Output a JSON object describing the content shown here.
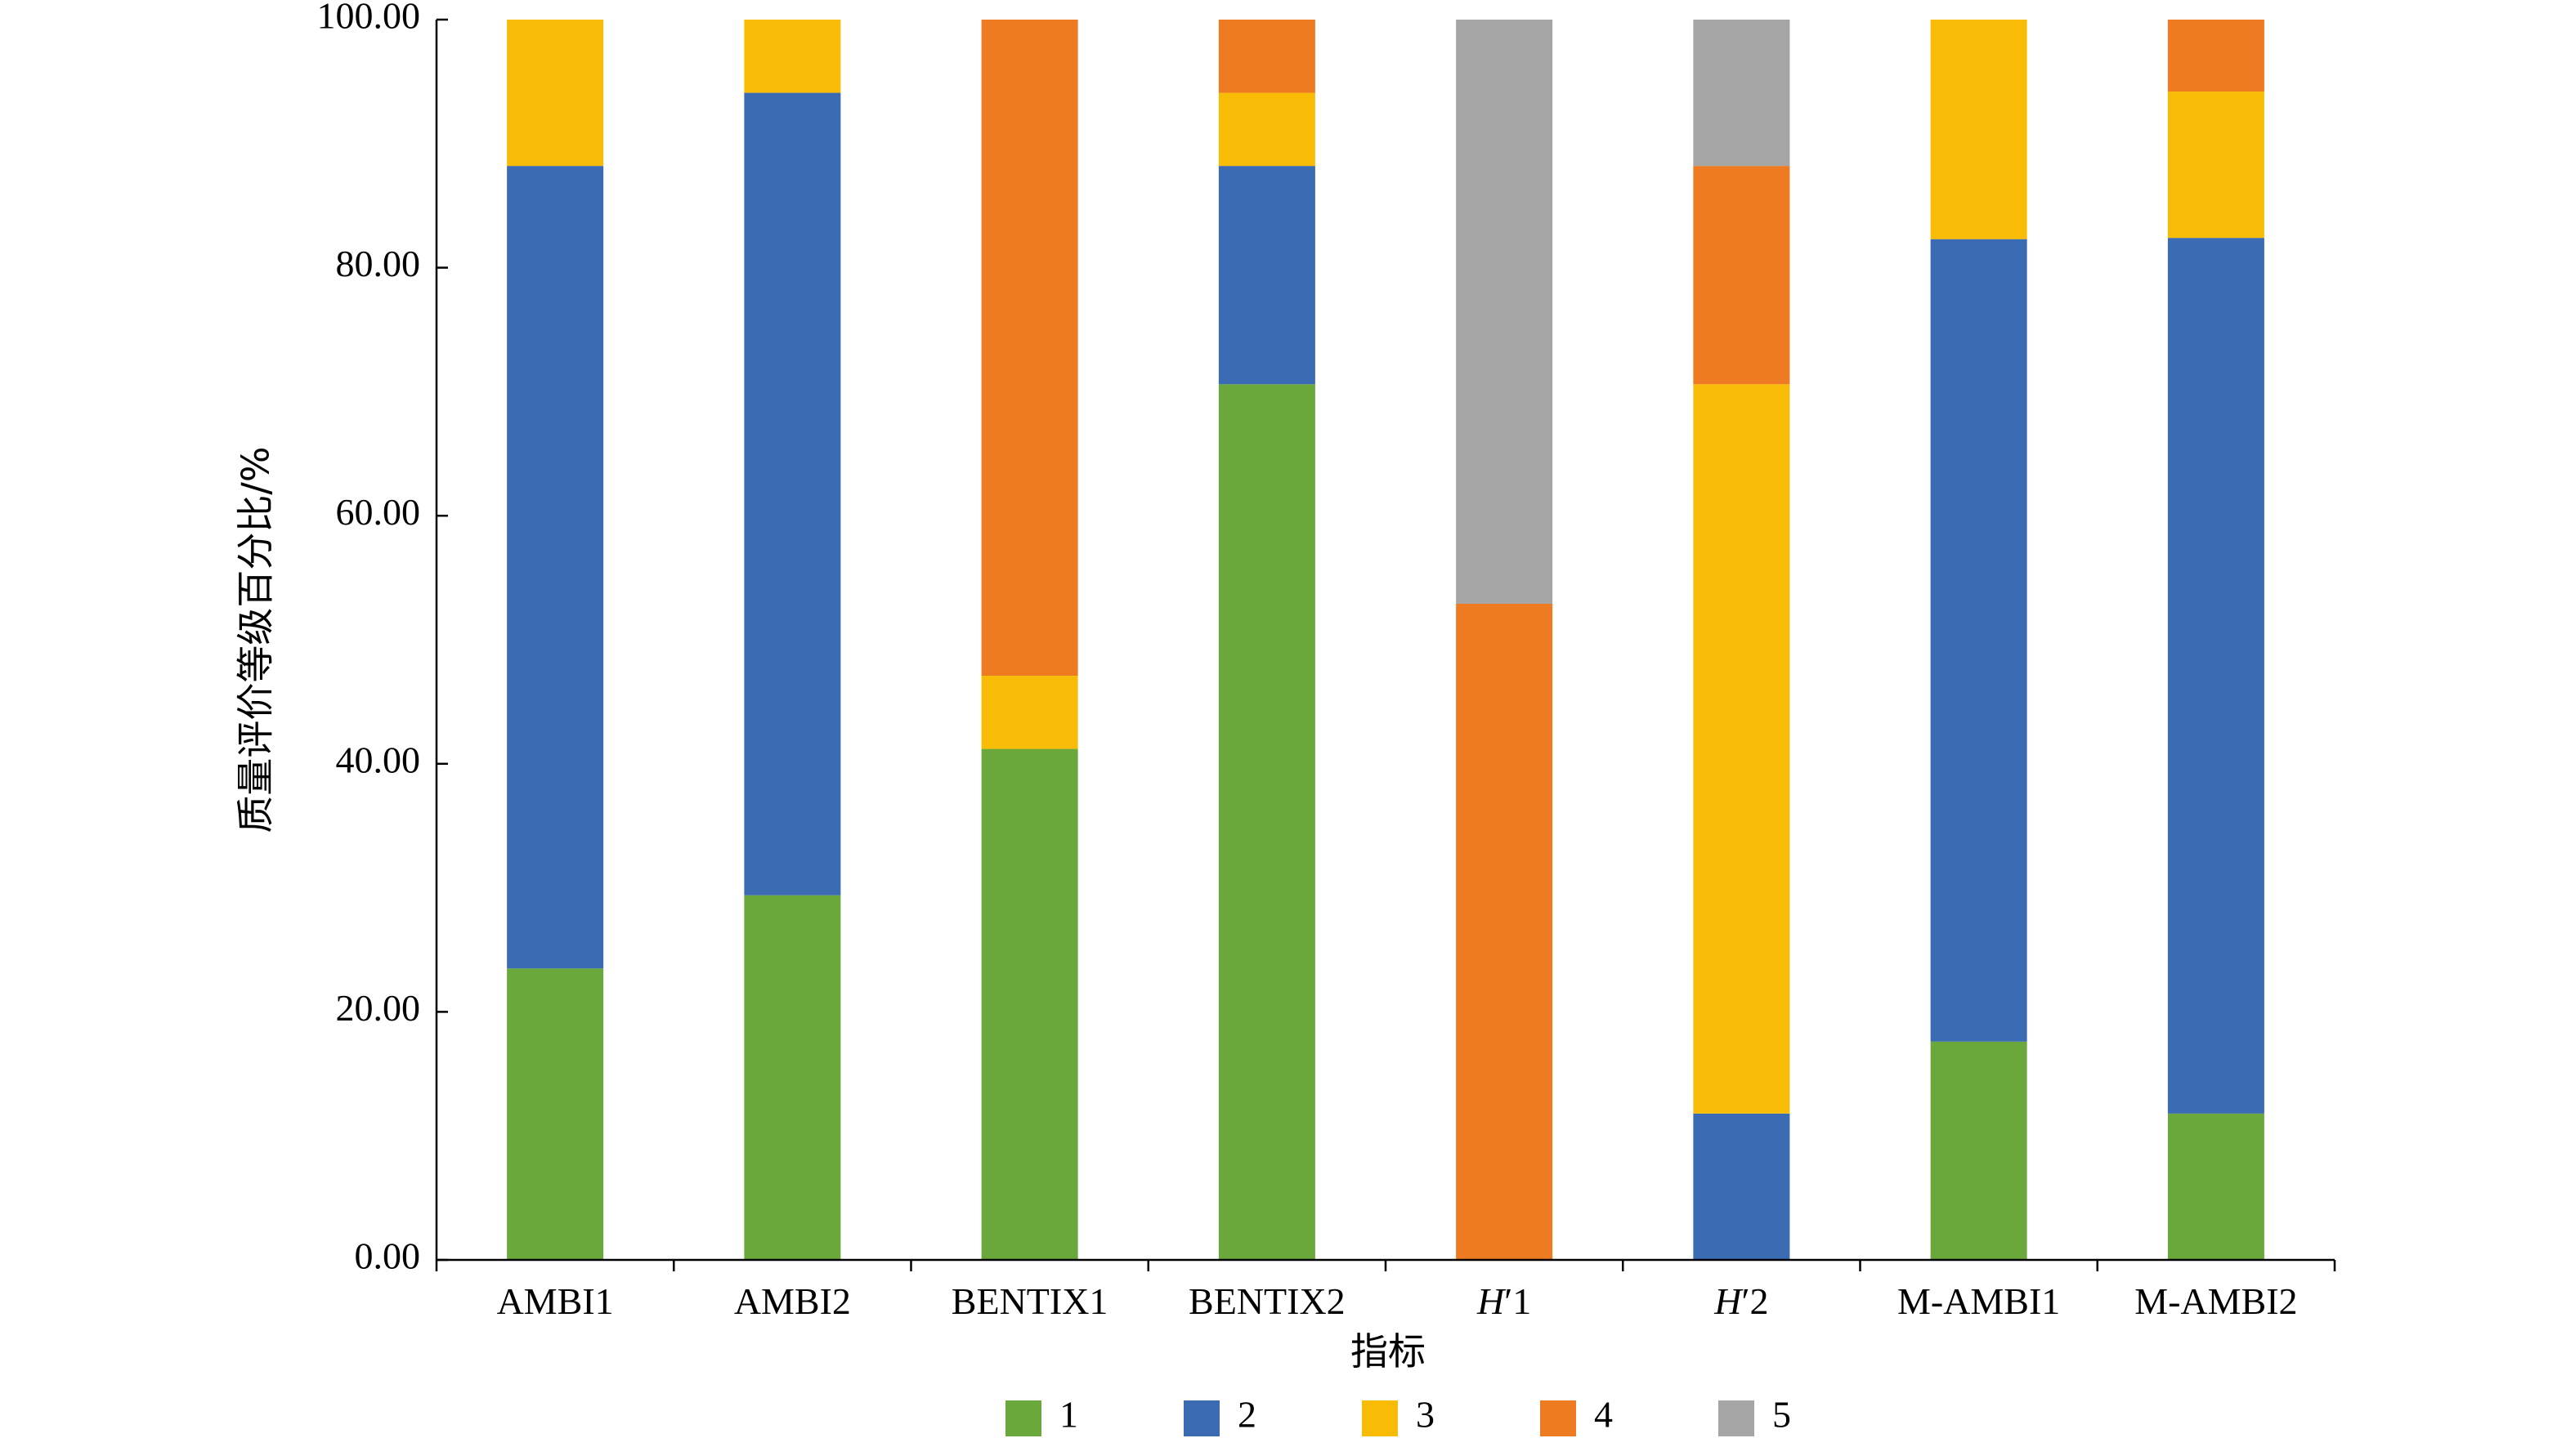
{
  "chart_data": {
    "type": "bar",
    "stacked": true,
    "title": "",
    "xlabel": "指标",
    "ylabel": "质量评价等级百分比/%",
    "ylim": [
      0,
      100
    ],
    "yticks": [
      "0.00",
      "20.00",
      "40.00",
      "60.00",
      "80.00",
      "100.00"
    ],
    "categories": [
      "AMBI1",
      "AMBI2",
      "BENTIX1",
      "BENTIX2",
      "H′1",
      "H′2",
      "M-AMBI1",
      "M-AMBI2"
    ],
    "category_labels": [
      {
        "italic": "",
        "rest": "AMBI1"
      },
      {
        "italic": "",
        "rest": "AMBI2"
      },
      {
        "italic": "",
        "rest": "BENTIX1"
      },
      {
        "italic": "",
        "rest": "BENTIX2"
      },
      {
        "italic": "H",
        "rest": "′1"
      },
      {
        "italic": "H",
        "rest": "′2"
      },
      {
        "italic": "",
        "rest": "M-AMBI1"
      },
      {
        "italic": "",
        "rest": "M-AMBI2"
      }
    ],
    "series": [
      {
        "name": "1",
        "color": "#6AA83B",
        "values": [
          23.5,
          29.4,
          41.2,
          70.6,
          0,
          0,
          17.6,
          11.8
        ]
      },
      {
        "name": "2",
        "color": "#3A6BB3",
        "values": [
          64.7,
          64.7,
          0,
          17.6,
          0,
          11.8,
          64.7,
          70.6
        ]
      },
      {
        "name": "3",
        "color": "#F9BC06",
        "values": [
          11.8,
          5.9,
          5.9,
          5.9,
          0,
          58.8,
          17.7,
          11.8
        ]
      },
      {
        "name": "4",
        "color": "#EE7A21",
        "values": [
          0,
          0,
          52.9,
          5.9,
          52.9,
          17.6,
          0,
          5.8
        ]
      },
      {
        "name": "5",
        "color": "#A5A5A5",
        "values": [
          0,
          0,
          0,
          0,
          47.1,
          11.8,
          0,
          0
        ]
      }
    ],
    "legend_position": "bottom",
    "grid": false
  }
}
